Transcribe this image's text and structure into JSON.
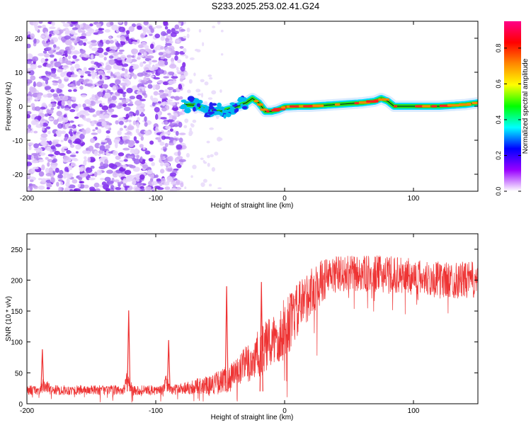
{
  "title": "S233.2025.253.02.41.G24",
  "chart_data": [
    {
      "type": "heatmap",
      "xlabel": "Height of straight line (km)",
      "ylabel": "Frequency (Hz)",
      "xlim": [
        -200,
        150
      ],
      "ylim": [
        -25,
        25
      ],
      "x_ticks": [
        -200,
        -100,
        0,
        100
      ],
      "x_tick_labels": [
        "-200",
        "-100",
        "0",
        "100"
      ],
      "y_ticks": [
        -20,
        -10,
        0,
        10,
        20
      ],
      "y_tick_labels": [
        "-20",
        "-10",
        "0",
        "10",
        "20"
      ],
      "noise_region_km": [
        -200,
        -78
      ],
      "frequency_trace": {
        "x": [
          -78,
          -70,
          -60,
          -50,
          -40,
          -30,
          -25,
          -20,
          -15,
          -10,
          -5,
          0,
          10,
          20,
          40,
          60,
          70,
          75,
          80,
          85,
          90,
          100,
          120,
          140,
          150
        ],
        "y": [
          0.5,
          0.3,
          -1.0,
          -1.5,
          -0.5,
          1.0,
          2.3,
          1.0,
          -1.5,
          -1.5,
          -1.0,
          -0.2,
          0.0,
          0.0,
          0.5,
          1.0,
          1.5,
          2.3,
          1.5,
          0.0,
          0.0,
          0.0,
          0.0,
          0.5,
          1.0
        ]
      },
      "colorbar": {
        "label": "Normalized spectral amplitude",
        "range": [
          0,
          0.95
        ],
        "ticks": [
          0.0,
          0.2,
          0.4,
          0.6,
          0.8
        ],
        "tick_labels": [
          "0.0",
          "0.2",
          "0.4",
          "0.6",
          "0.8"
        ],
        "colors": [
          "#ffffff",
          "#9900ff",
          "#0000ff",
          "#00ffff",
          "#00ff00",
          "#ffff00",
          "#ff8800",
          "#ff0000",
          "#ff0088"
        ]
      }
    },
    {
      "type": "line",
      "color": "#ee3333",
      "xlabel": "Height of straight line (km)",
      "ylabel": "SNR (10 * v/v)",
      "xlim": [
        -200,
        150
      ],
      "ylim": [
        0,
        275
      ],
      "x_ticks": [
        -200,
        -100,
        0,
        100
      ],
      "x_tick_labels": [
        "-200",
        "-100",
        "0",
        "100"
      ],
      "y_ticks": [
        0,
        50,
        100,
        150,
        200,
        250
      ],
      "y_tick_labels": [
        "0",
        "50",
        "100",
        "150",
        "200",
        "250"
      ],
      "envelope": {
        "x": [
          -200,
          -190,
          -187,
          -180,
          -125,
          -122,
          -118,
          -95,
          -92,
          -88,
          -80,
          -60,
          -50,
          -40,
          -30,
          -20,
          -10,
          0,
          10,
          20,
          30,
          40,
          60,
          80,
          100,
          120,
          140,
          150
        ],
        "mean": [
          22,
          22,
          30,
          22,
          22,
          40,
          22,
          22,
          35,
          22,
          25,
          30,
          35,
          45,
          60,
          80,
          100,
          120,
          150,
          180,
          200,
          210,
          210,
          210,
          205,
          200,
          200,
          200
        ],
        "spread": [
          8,
          8,
          12,
          8,
          8,
          15,
          8,
          8,
          12,
          8,
          10,
          15,
          20,
          25,
          35,
          40,
          45,
          50,
          45,
          40,
          35,
          30,
          30,
          30,
          30,
          30,
          30,
          30
        ]
      },
      "spikes": [
        {
          "x": -188,
          "y": 88
        },
        {
          "x": -121,
          "y": 151
        },
        {
          "x": -90,
          "y": 103
        },
        {
          "x": -45,
          "y": 190
        },
        {
          "x": -18,
          "y": 197
        }
      ]
    }
  ]
}
